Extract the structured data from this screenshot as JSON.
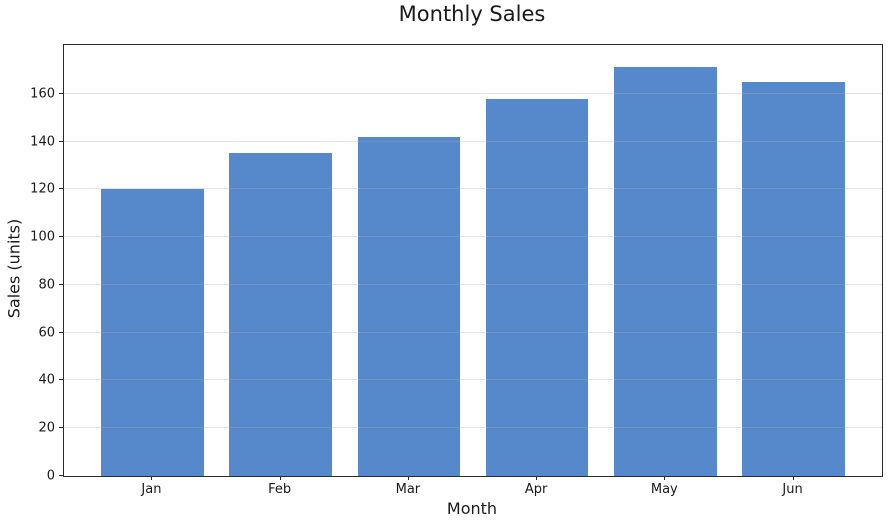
{
  "chart_data": {
    "type": "bar",
    "title": "Monthly Sales",
    "categories": [
      "Jan",
      "Feb",
      "Mar",
      "Apr",
      "May",
      "Jun"
    ],
    "values": [
      120,
      135,
      142,
      158,
      171,
      165
    ],
    "xlabel": "Month",
    "ylabel": "Sales (units)",
    "ylim": [
      0,
      180.4
    ],
    "yticks": [
      0,
      20,
      40,
      60,
      80,
      100,
      120,
      140,
      160
    ],
    "bar_color": "#5589cc",
    "bar_width_fraction": 0.8,
    "grid": "horizontal",
    "grid_style": "light line drawn with transparency above bars",
    "legend": "none",
    "background_color": "#ffffff",
    "spine_color": "#2b2b2b",
    "text_color": "#1a1a1a"
  }
}
